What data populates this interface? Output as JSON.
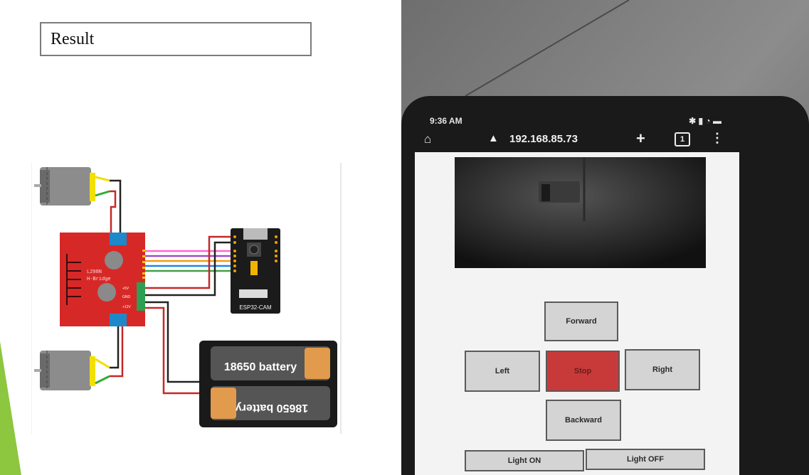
{
  "slide": {
    "result_label": "Result",
    "accent_color": "#8dc63f"
  },
  "diagram": {
    "driver_label": "L298N H-Bridge",
    "driver_pins": [
      "+5V",
      "GND",
      "+12V"
    ],
    "cam_label": "ESP32-CAM",
    "battery_top": "18650 battery",
    "battery_bottom": "18650 battery"
  },
  "phone": {
    "status_time": "9:36 AM",
    "url": "192.168.85.73",
    "tab_count": "1",
    "buttons": {
      "forward": "Forward",
      "left": "Left",
      "stop": "Stop",
      "right": "Right",
      "backward": "Backward",
      "light_on": "Light ON",
      "light_off": "Light OFF"
    }
  }
}
